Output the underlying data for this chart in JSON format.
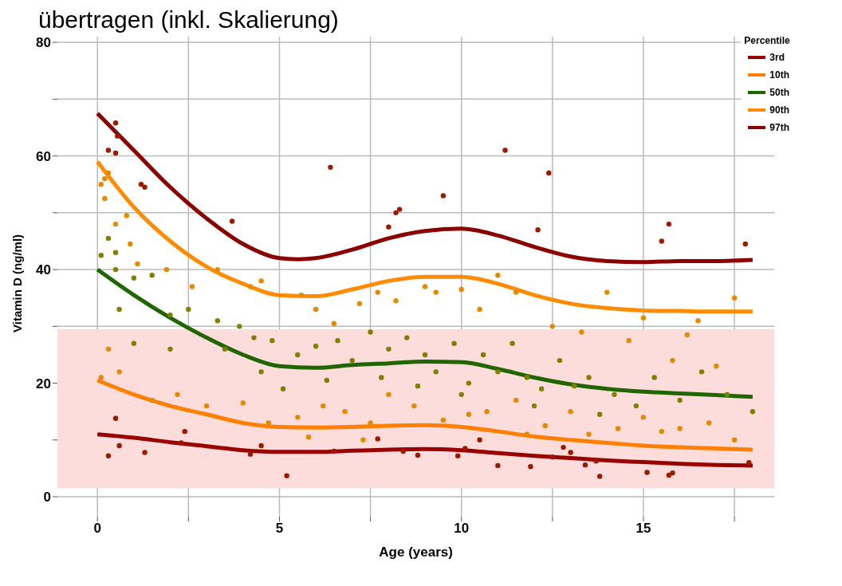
{
  "chart_data": {
    "type": "line",
    "title": "übertragen (inkl. Skalierung)",
    "xlabel": "Age (years)",
    "ylabel": "Vitamin D (ng/ml)",
    "legend_title": "Percentile",
    "legend": "top right",
    "grid": true,
    "xlim": [
      -1.1,
      18.6
    ],
    "ylim": [
      -3.5,
      81
    ],
    "xticks": [
      0,
      {
        "value": 2.5,
        "label": null
      },
      5,
      {
        "value": 7.5,
        "label": null
      },
      10,
      {
        "value": 12.5,
        "label": null
      },
      15,
      {
        "value": 17.5,
        "label": null
      }
    ],
    "yticks": [
      0,
      {
        "value": 10,
        "label": null
      },
      20,
      {
        "value": 30,
        "label": null
      },
      40,
      {
        "value": 50,
        "label": null
      },
      60,
      {
        "value": 70,
        "label": null
      },
      80
    ],
    "bands": [
      {
        "axis": "y",
        "from": 1.5,
        "to": 29.5,
        "color": "#fddcdc"
      }
    ],
    "series": [
      {
        "type": "scatter",
        "color": "#9b1a00",
        "x": [
          0.3,
          0.5,
          0.55,
          0.5,
          1.2,
          1.3,
          3.7,
          6.4,
          8,
          8.2,
          8.3,
          9.5,
          11.2,
          12.4,
          12.1,
          15.7,
          15.5,
          17.8,
          0.5,
          0.3,
          0.6,
          1.3,
          2.3,
          4.2,
          5.2,
          6.5,
          8.4,
          8.8,
          9.9,
          10.1,
          11,
          11.9,
          12.5,
          13.4,
          13.8,
          15.1,
          15.7,
          15.8,
          17.9,
          13,
          13.7,
          12.8,
          4.5,
          7.7,
          2.4,
          10.5
        ],
        "values": [
          61,
          65.8,
          63.5,
          60.5,
          55,
          54.5,
          48.5,
          58,
          47.5,
          50,
          50.6,
          53,
          61,
          57,
          47,
          48,
          45,
          44.5,
          13.8,
          7.2,
          9,
          7.8,
          9.5,
          7.5,
          3.7,
          8,
          8,
          7.3,
          7.2,
          8.5,
          5.5,
          5.3,
          7,
          5.6,
          3.6,
          4.3,
          3.8,
          4.2,
          6,
          7.8,
          6.3,
          8.7,
          9,
          10.2,
          11.5,
          10
        ]
      },
      {
        "type": "scatter",
        "color": "#e38a00",
        "x": [
          0.2,
          0.3,
          0.1,
          0.2,
          0.5,
          0.8,
          1.1,
          0.9,
          1.9,
          2.6,
          3.3,
          4.2,
          4.5,
          5.6,
          6,
          6.5,
          7.2,
          7.7,
          8.2,
          9,
          9.3,
          10,
          10.5,
          11,
          11.5,
          12.5,
          13.3,
          14,
          15,
          16.5,
          17.5,
          16.2,
          14.6,
          15.8,
          17,
          0.1,
          0.3,
          0.6,
          1.5,
          2.2,
          3,
          4,
          4.7,
          5.5,
          6.2,
          6.8,
          7.5,
          8,
          8.7,
          9.5,
          10.2,
          10.7,
          11.5,
          12.3,
          13,
          13.5,
          14.3,
          15,
          15.5,
          16,
          16.8,
          17.5,
          5.8,
          7.3,
          11.8
        ],
        "values": [
          56,
          57,
          55,
          52.5,
          48,
          49.5,
          41,
          44.5,
          40,
          37,
          40,
          37,
          38,
          35.5,
          33,
          30.5,
          34,
          36,
          34.5,
          37,
          36,
          36.5,
          33,
          39,
          36,
          30,
          29,
          36,
          31.5,
          31,
          35,
          28.5,
          27.5,
          24,
          23,
          21,
          26,
          22,
          17,
          18,
          16,
          16.5,
          13,
          14,
          16,
          15,
          13,
          18,
          16,
          13.5,
          14.5,
          15,
          17,
          12.5,
          15,
          11,
          12,
          14,
          11.5,
          12,
          13,
          10,
          10.5,
          10,
          11
        ]
      },
      {
        "type": "scatter",
        "color": "#7f7f00",
        "x": [
          0.1,
          0.3,
          0.5,
          0.5,
          1,
          1.5,
          2,
          2.5,
          3.3,
          3.9,
          4.3,
          4.8,
          5.5,
          6,
          6.6,
          7,
          7.5,
          8,
          8.5,
          9,
          9.3,
          9.8,
          10.2,
          10.6,
          11,
          11.4,
          11.8,
          12.2,
          12.7,
          13.1,
          13.5,
          14.2,
          14.8,
          15.3,
          16,
          16.6,
          17.3,
          18,
          5.1,
          6.3,
          7.8,
          8.8,
          10,
          12,
          13.8,
          4.5,
          3.5,
          1,
          0.6,
          2
        ],
        "values": [
          42.5,
          45.5,
          43,
          40,
          38.5,
          39,
          32,
          33,
          31,
          30,
          28,
          27.5,
          25,
          26.5,
          27.5,
          24,
          29,
          26,
          28,
          25,
          22,
          27,
          20,
          25,
          22,
          27,
          21,
          19,
          24,
          19.5,
          21,
          18,
          16,
          21,
          17,
          22,
          18,
          15,
          19,
          20.5,
          21,
          19.5,
          18,
          16,
          14.5,
          22,
          26,
          27,
          33,
          26
        ]
      },
      {
        "name": "3rd",
        "color": "#990000",
        "x": [
          0,
          1,
          2,
          3,
          4,
          5,
          6,
          7,
          8,
          9,
          10,
          11,
          12,
          13,
          14,
          15,
          16,
          17,
          18
        ],
        "values": [
          11,
          10.4,
          9.6,
          8.9,
          8.2,
          7.9,
          7.9,
          8.1,
          8.3,
          8.4,
          8.2,
          7.7,
          7.2,
          6.8,
          6.4,
          6.1,
          5.8,
          5.6,
          5.5
        ]
      },
      {
        "name": "10th",
        "color": "#ff7f00",
        "x": [
          0,
          1,
          2,
          3,
          4,
          5,
          6,
          7,
          8,
          9,
          10,
          11,
          12,
          13,
          14,
          15,
          16,
          17,
          18
        ],
        "values": [
          20.5,
          18,
          16,
          14.5,
          13,
          12.3,
          12.2,
          12.3,
          12.5,
          12.6,
          12.3,
          11.5,
          10.6,
          10,
          9.5,
          9,
          8.7,
          8.5,
          8.3
        ]
      },
      {
        "name": "50th",
        "color": "#1f6600",
        "x": [
          0,
          1,
          2,
          3,
          4,
          5,
          6,
          7,
          8,
          9,
          10,
          11,
          12,
          13,
          14,
          15,
          16,
          17,
          18
        ],
        "values": [
          40,
          35.5,
          31.5,
          28,
          25,
          23,
          22.7,
          23.2,
          23.5,
          23.8,
          23.7,
          22.5,
          21,
          19.8,
          19,
          18.5,
          18.2,
          17.9,
          17.6
        ]
      },
      {
        "name": "90th",
        "color": "#ff8c00",
        "x": [
          0,
          1,
          2,
          3,
          4,
          5,
          6,
          7,
          8,
          9,
          10,
          11,
          12,
          13,
          14,
          15,
          16,
          17,
          18
        ],
        "values": [
          59,
          51,
          45,
          40.5,
          37.5,
          35.5,
          35.3,
          36.5,
          38,
          38.7,
          38.7,
          37.5,
          35.5,
          34,
          33.2,
          32.8,
          32.7,
          32.6,
          32.6
        ]
      },
      {
        "name": "97th",
        "color": "#8b0000",
        "x": [
          0,
          1,
          2,
          3,
          4,
          5,
          5.5,
          6,
          7,
          8,
          9,
          10,
          11,
          12,
          13,
          14,
          15,
          16,
          17,
          18
        ],
        "values": [
          67.5,
          61,
          54.5,
          49,
          44.5,
          42,
          41.8,
          42,
          43.5,
          45.5,
          46.8,
          47.2,
          46,
          44,
          42.3,
          41.5,
          41.3,
          41.5,
          41.5,
          41.7
        ]
      }
    ]
  }
}
